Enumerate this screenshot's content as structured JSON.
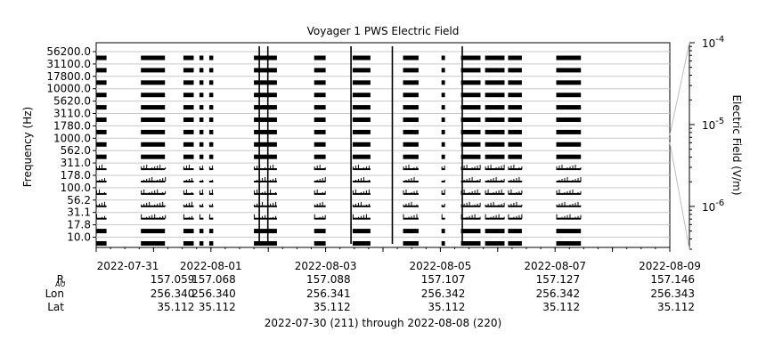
{
  "chart_data": {
    "type": "heatmap",
    "title": "Voyager 1 PWS Electric Field",
    "ylabel": "Frequency (Hz)",
    "colorbar_label": "Electric Field (V/m)",
    "colorbar_ticks": [
      {
        "base": "10",
        "exp": "-4",
        "value": 0.0001
      },
      {
        "base": "10",
        "exp": "-5",
        "value": 1e-05
      },
      {
        "base": "10",
        "exp": "-6",
        "value": 1e-06
      }
    ],
    "colorbar_range": [
      3e-07,
      0.0001
    ],
    "channels": [
      "10.0",
      "17.8",
      "31.1",
      "56.2",
      "100.0",
      "178.0",
      "311.0",
      "562.0",
      "1000.0",
      "1780.0",
      "3110.0",
      "5620.0",
      "10000.0",
      "17800.0",
      "31100.0",
      "56200.0"
    ],
    "y_tick_labels": [
      "56200.0",
      "31100.0",
      "17800.0",
      "10000.0",
      "5620.0",
      "3110.0",
      "1780.0",
      "1000.0",
      "562.0",
      "311.0",
      "178.0",
      "100.0",
      "56.2",
      "31.1",
      "17.8",
      "10.0"
    ],
    "x_range_days": [
      "2022-07-30",
      "2022-08-09"
    ],
    "x_tick_labels": [
      "2022-07-31",
      "2022-08-01",
      "2022-08-03",
      "2022-08-05",
      "2022-08-07",
      "2022-08-09"
    ],
    "data_intervals_day_offset": [
      [
        0.0,
        0.18
      ],
      [
        0.78,
        1.2
      ],
      [
        1.52,
        1.7
      ],
      [
        1.8,
        1.87
      ],
      [
        1.97,
        2.04
      ],
      [
        2.75,
        3.15
      ],
      [
        3.8,
        4.0
      ],
      [
        4.47,
        4.78
      ],
      [
        5.35,
        5.62
      ],
      [
        6.02,
        6.08
      ],
      [
        6.36,
        6.7
      ],
      [
        6.78,
        7.12
      ],
      [
        7.18,
        7.42
      ],
      [
        8.02,
        8.45
      ]
    ],
    "spikes_day_offset": [
      2.83,
      2.98,
      4.43,
      5.15,
      6.37
    ],
    "orbit_rows": [
      {
        "label": "R",
        "sub": "AU",
        "values": [
          "157.059",
          "157.068",
          "157.088",
          "157.107",
          "157.127",
          "157.146"
        ]
      },
      {
        "label": "Lon",
        "values": [
          "256.340",
          "256.340",
          "256.341",
          "256.342",
          "256.342",
          "256.343"
        ]
      },
      {
        "label": "Lat",
        "values": [
          "35.112",
          "35.112",
          "35.112",
          "35.112",
          "35.112",
          "35.112"
        ]
      }
    ],
    "footer": "2022-07-30 (211) through 2022-08-08 (220)",
    "grid": true
  }
}
